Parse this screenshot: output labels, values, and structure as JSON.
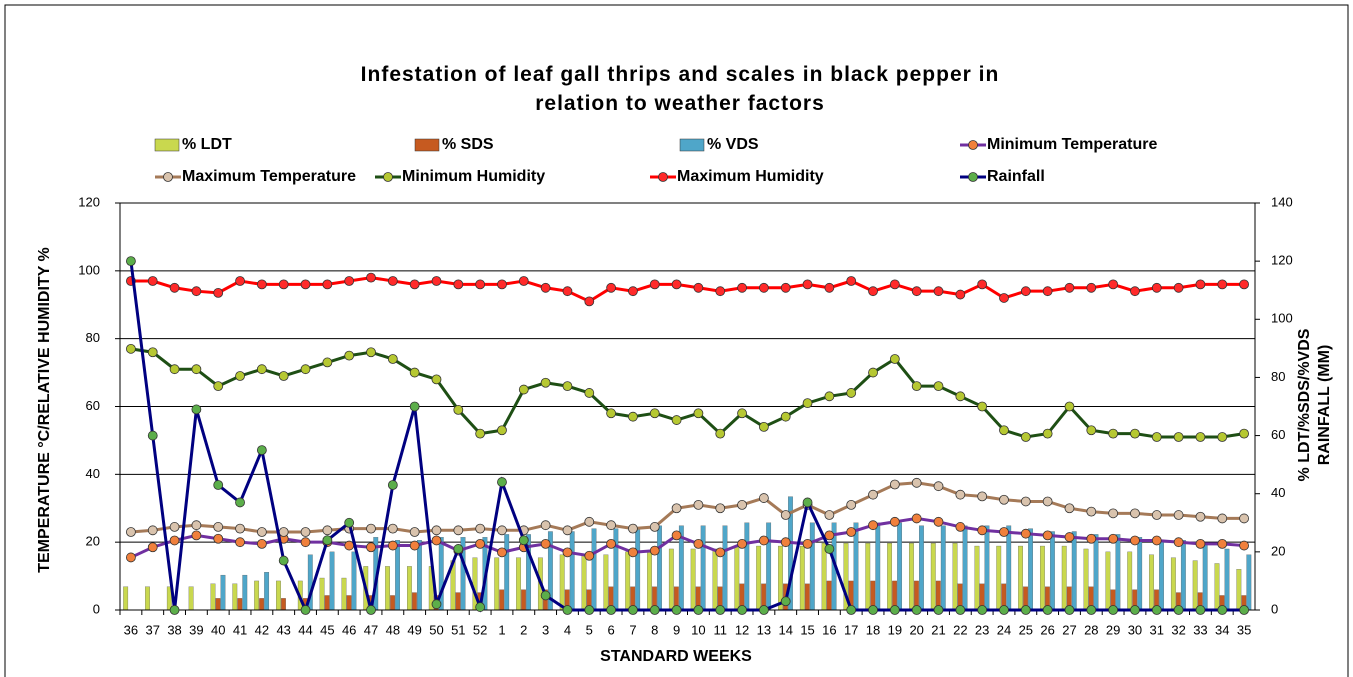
{
  "chart_data": {
    "type": "combo",
    "title": "Infestation of leaf gall thrips and scales in black pepper in relation to weather factors",
    "xlabel": "STANDARD WEEKS",
    "ylabel": "TEMPERATURE °C/RELATIVE HUMIDITY %",
    "y2label": [
      "% LDT/%SDS/%VDS",
      "RAINFALL (MM)"
    ],
    "categories": [
      "36",
      "37",
      "38",
      "39",
      "40",
      "41",
      "42",
      "43",
      "44",
      "45",
      "46",
      "47",
      "48",
      "49",
      "50",
      "51",
      "52",
      "1",
      "2",
      "3",
      "4",
      "5",
      "6",
      "7",
      "8",
      "9",
      "10",
      "11",
      "12",
      "13",
      "14",
      "15",
      "16",
      "17",
      "18",
      "19",
      "20",
      "21",
      "22",
      "23",
      "24",
      "25",
      "26",
      "27",
      "28",
      "29",
      "30",
      "31",
      "32",
      "33",
      "34",
      "35"
    ],
    "ylim": [
      0,
      120
    ],
    "yticks": [
      0,
      20,
      40,
      60,
      80,
      100,
      120
    ],
    "y2lim": [
      0,
      140
    ],
    "y2ticks": [
      0,
      20,
      40,
      60,
      80,
      100,
      120,
      140
    ],
    "grid": true,
    "series": [
      {
        "name": "% LDT",
        "kind": "bar",
        "axis": "y2",
        "color": "#c9d84e",
        "values": [
          8,
          8,
          8,
          8,
          9,
          9,
          10,
          10,
          10,
          11,
          11,
          15,
          15,
          15,
          15,
          17,
          18,
          18,
          18,
          18,
          19,
          19,
          19,
          20,
          20,
          21,
          21,
          21,
          22,
          22,
          22,
          22,
          23,
          23,
          23,
          23,
          23,
          23,
          23,
          22,
          22,
          22,
          22,
          22,
          21,
          20,
          20,
          19,
          18,
          17,
          16,
          14
        ]
      },
      {
        "name": "% SDS",
        "kind": "bar",
        "axis": "y2",
        "color": "#c65a20",
        "values": [
          0,
          0,
          0,
          0,
          4,
          4,
          4,
          4,
          4,
          5,
          5,
          5,
          5,
          6,
          5,
          6,
          6,
          7,
          7,
          7,
          7,
          7,
          8,
          8,
          8,
          8,
          8,
          8,
          9,
          9,
          9,
          9,
          10,
          10,
          10,
          10,
          10,
          10,
          9,
          9,
          9,
          8,
          8,
          8,
          8,
          7,
          7,
          7,
          6,
          6,
          5,
          5
        ]
      },
      {
        "name": "% VDS",
        "kind": "bar",
        "axis": "y2",
        "color": "#4fa6c9",
        "values": [
          0,
          0,
          0,
          0,
          12,
          12,
          13,
          0,
          19,
          20,
          20,
          25,
          24,
          24,
          25,
          25,
          25,
          26,
          26,
          27,
          27,
          28,
          28,
          28,
          29,
          29,
          29,
          29,
          30,
          30,
          39,
          30,
          30,
          30,
          30,
          30,
          29,
          29,
          29,
          29,
          29,
          28,
          27,
          27,
          26,
          26,
          25,
          24,
          24,
          23,
          21,
          19
        ]
      },
      {
        "name": "Minimum Temperature",
        "kind": "line",
        "color": "#7030a0",
        "marker_color": "#f0803c",
        "values": [
          15.5,
          18.5,
          20.5,
          22,
          21,
          20,
          19.5,
          21,
          20,
          20,
          19,
          18.5,
          19,
          19,
          20.5,
          17.5,
          19.5,
          17,
          18.5,
          19.5,
          17,
          16,
          19.5,
          17,
          17.5,
          22,
          19.5,
          17,
          19.5,
          20.5,
          20,
          19.5,
          22,
          23,
          25,
          26,
          27,
          26,
          24.5,
          23.5,
          23,
          22.5,
          22,
          21.5,
          21,
          21,
          20.5,
          20.5,
          20,
          19.5,
          19.5,
          19
        ]
      },
      {
        "name": "Maximum Temperature",
        "kind": "line",
        "color": "#a57a58",
        "marker_color": "#d9c3ad",
        "values": [
          23,
          23.5,
          24.5,
          25,
          24.5,
          24,
          23,
          23,
          23,
          23.5,
          24,
          24,
          24,
          23,
          23.5,
          23.5,
          24,
          23.5,
          23.5,
          25,
          23.5,
          26,
          25,
          24,
          24.5,
          30,
          31,
          30,
          31,
          33,
          28,
          31,
          28,
          31,
          34,
          37,
          37.5,
          36.5,
          34,
          33.5,
          32.5,
          32,
          32,
          30,
          29,
          28.5,
          28.5,
          28,
          28,
          27.5,
          27,
          27
        ]
      },
      {
        "name": "Minimum Humidity",
        "kind": "line",
        "color": "#1e4f14",
        "marker_color": "#b6c832",
        "values": [
          77,
          76,
          71,
          71,
          66,
          69,
          71,
          69,
          71,
          73,
          75,
          76,
          74,
          70,
          68,
          59,
          52,
          53,
          65,
          67,
          66,
          64,
          58,
          57,
          58,
          56,
          58,
          52,
          58,
          54,
          57,
          61,
          63,
          64,
          70,
          74,
          66,
          66,
          63,
          60,
          53,
          51,
          52,
          60,
          53,
          52,
          52,
          51,
          51,
          51,
          51,
          52
        ]
      },
      {
        "name": "Maximum Humidity",
        "kind": "line",
        "color": "#ff0000",
        "marker_color": "#ff2a2a",
        "values": [
          97,
          97,
          95,
          94,
          93.5,
          97,
          96,
          96,
          96,
          96,
          97,
          98,
          97,
          96,
          97,
          96,
          96,
          96,
          97,
          95,
          94,
          91,
          95,
          94,
          96,
          96,
          95,
          94,
          95,
          95,
          95,
          96,
          95,
          97,
          94,
          96,
          94,
          94,
          93,
          96,
          92,
          94,
          94,
          95,
          95,
          96,
          94,
          95,
          95,
          96,
          96,
          96
        ]
      },
      {
        "name": "Rainfall",
        "kind": "line",
        "axis": "y2",
        "color": "#000080",
        "marker_color": "#5cae4a",
        "values": [
          120,
          60,
          0,
          69,
          43,
          37,
          55,
          17,
          0,
          24,
          30,
          0,
          43,
          70,
          2,
          21,
          1,
          44,
          24,
          5,
          0,
          0,
          0,
          0,
          0,
          0,
          0,
          0,
          0,
          0,
          3,
          37,
          21,
          0,
          0,
          0,
          0,
          0,
          0,
          0,
          0,
          0,
          0,
          0,
          0,
          0,
          0,
          0,
          0,
          0,
          0,
          0
        ]
      }
    ]
  }
}
